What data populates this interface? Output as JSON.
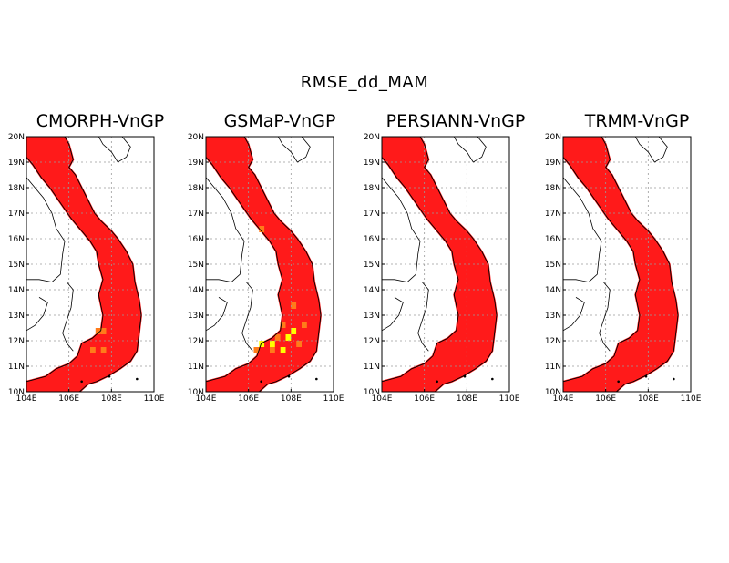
{
  "title": "RMSE_dd_MAM",
  "axes": {
    "lat_ticks": [
      "20N",
      "19N",
      "18N",
      "17N",
      "16N",
      "15N",
      "14N",
      "13N",
      "12N",
      "11N",
      "10N"
    ],
    "lon_ticks": [
      "104E",
      "106E",
      "108E",
      "110E"
    ]
  },
  "colors": {
    "base_fill": "#ff1a1a",
    "orange": "#ff7b1a",
    "yellow": "#ffff00",
    "coast": "#000000",
    "grid": "#9a9a9a"
  },
  "panels": [
    {
      "id": "cmorph",
      "title": "CMORPH-VnGP",
      "highlights": [
        {
          "lon": 107.25,
          "lat": 12.25,
          "level": "orange"
        },
        {
          "lon": 107.5,
          "lat": 12.25,
          "level": "orange"
        },
        {
          "lon": 107.0,
          "lat": 11.5,
          "level": "orange"
        },
        {
          "lon": 107.5,
          "lat": 11.5,
          "level": "orange"
        }
      ]
    },
    {
      "id": "gsmap",
      "title": "GSMaP-VnGP",
      "highlights": [
        {
          "lon": 106.5,
          "lat": 11.75,
          "level": "yellow"
        },
        {
          "lon": 107.0,
          "lat": 11.75,
          "level": "yellow"
        },
        {
          "lon": 107.5,
          "lat": 11.5,
          "level": "yellow"
        },
        {
          "lon": 107.75,
          "lat": 12.0,
          "level": "yellow"
        },
        {
          "lon": 108.0,
          "lat": 12.25,
          "level": "yellow"
        },
        {
          "lon": 108.5,
          "lat": 12.5,
          "level": "orange"
        },
        {
          "lon": 107.0,
          "lat": 11.5,
          "level": "orange"
        },
        {
          "lon": 107.25,
          "lat": 12.0,
          "level": "orange"
        },
        {
          "lon": 107.5,
          "lat": 12.5,
          "level": "orange"
        },
        {
          "lon": 108.0,
          "lat": 13.25,
          "level": "orange"
        },
        {
          "lon": 108.25,
          "lat": 11.75,
          "level": "orange"
        },
        {
          "lon": 106.25,
          "lat": 11.5,
          "level": "orange"
        },
        {
          "lon": 106.5,
          "lat": 16.25,
          "level": "orange"
        }
      ]
    },
    {
      "id": "persiann",
      "title": "PERSIANN-VnGP",
      "highlights": []
    },
    {
      "id": "trmm",
      "title": "TRMM-VnGP",
      "highlights": []
    }
  ]
}
